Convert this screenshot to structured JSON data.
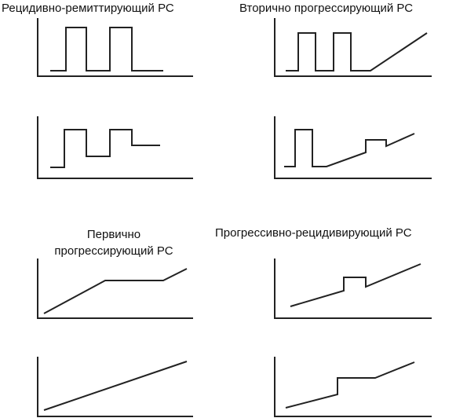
{
  "titles": {
    "relapsing_remitting": "Рецидивно-ремиттирующий РС",
    "secondary_progressive": "Вторично прогрессирующий РС",
    "primary_progressive_line1": "Первично",
    "primary_progressive_line2": "прогрессирующий РС",
    "progressive_relapsing": "Прогрессивно-рецидивирующий РС"
  }
}
